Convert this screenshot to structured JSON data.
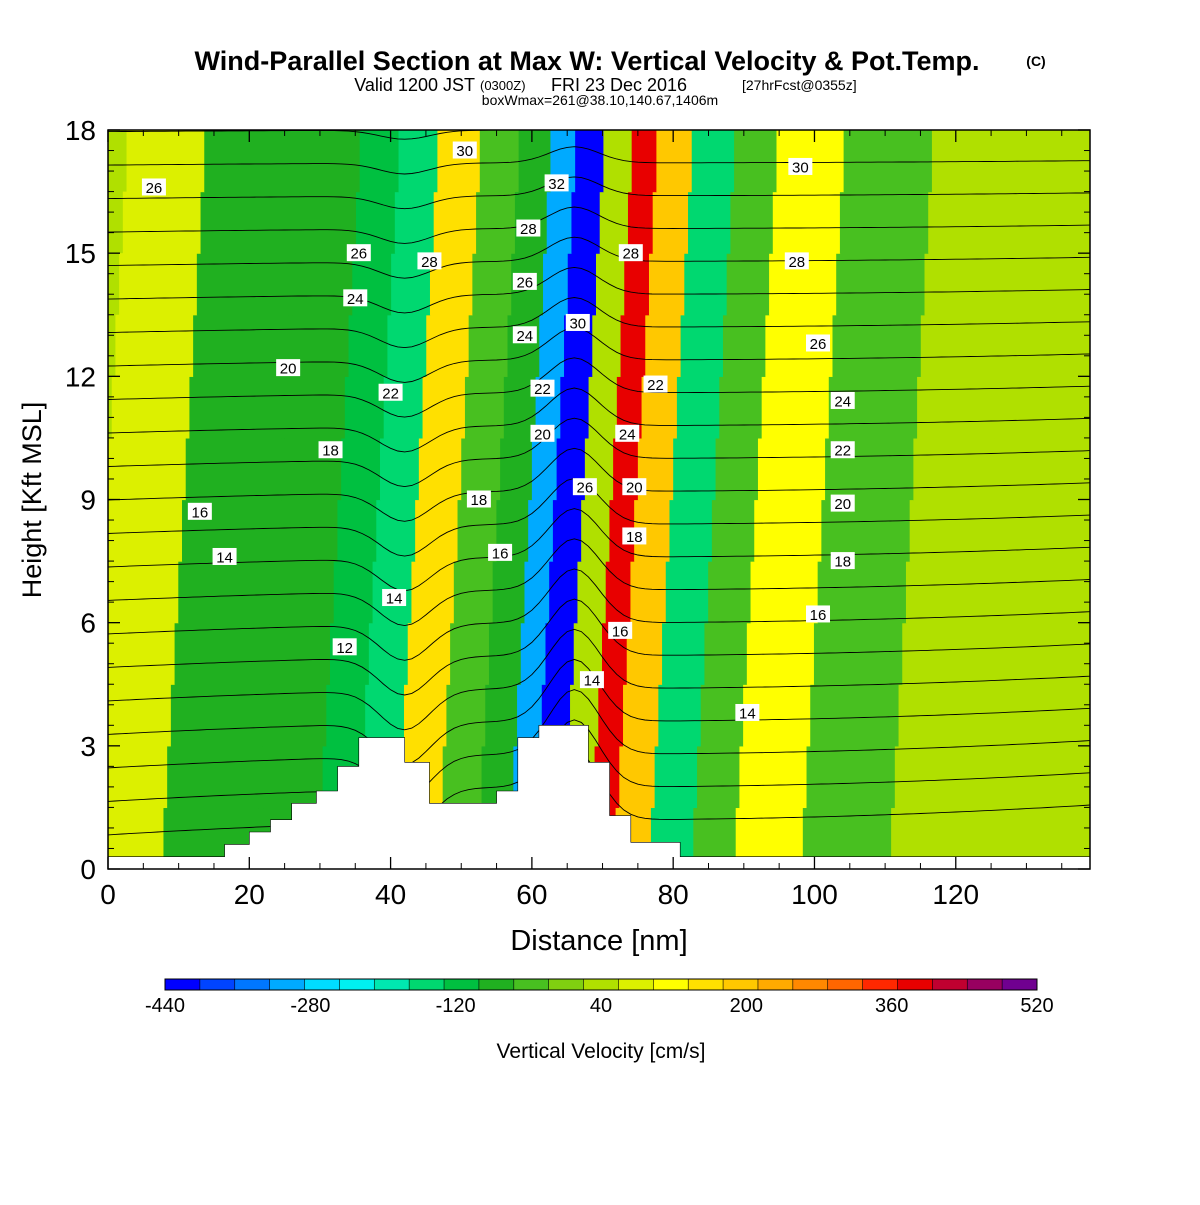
{
  "title": {
    "main": "Wind-Parallel Section at Max W: Vertical Velocity & Pot.Temp.",
    "copyright": "(C)",
    "valid_prefix": "Valid 1200 JST",
    "valid_utc": "(0300Z)",
    "valid_date": "FRI 23 Dec 2016",
    "forecast": "[27hrFcst@0355z]",
    "boxwmax": "boxWmax=261@38.10,140.67,1406m"
  },
  "chart_data": {
    "type": "heatmap",
    "xlabel": "Distance [nm]",
    "ylabel": "Height [Kft MSL]",
    "xlim": [
      0,
      139
    ],
    "ylim": [
      0,
      18
    ],
    "xticks": [
      0,
      20,
      40,
      60,
      80,
      100,
      120
    ],
    "yticks": [
      0,
      3,
      6,
      9,
      12,
      15,
      18
    ],
    "colorbar": {
      "label": "Vertical Velocity [cm/s]",
      "min": -440,
      "max": 520,
      "step": 40,
      "tick_values": [
        -440,
        -280,
        -120,
        40,
        200,
        360,
        520
      ],
      "colors": [
        "#0000ff",
        "#0044ff",
        "#0077ff",
        "#00aaff",
        "#00ddff",
        "#00f0f0",
        "#00e8b0",
        "#00d870",
        "#00c040",
        "#20b020",
        "#48c020",
        "#80d010",
        "#b0e000",
        "#dcf000",
        "#ffff00",
        "#ffe000",
        "#ffc800",
        "#ffaa00",
        "#ff8800",
        "#ff6600",
        "#ff2800",
        "#e80000",
        "#c00030",
        "#980060",
        "#700090"
      ]
    },
    "velocity_bands": [
      {
        "x": 3,
        "w": 100
      },
      {
        "x": 19,
        "w": -60
      },
      {
        "x": 30,
        "w": -60
      },
      {
        "x": 36,
        "w": -120
      },
      {
        "x": 41,
        "w": -160
      },
      {
        "x": 47,
        "w": 160
      },
      {
        "x": 53,
        "w": -40
      },
      {
        "x": 58,
        "w": -80
      },
      {
        "x": 62,
        "w": -300
      },
      {
        "x": 65,
        "w": -440
      },
      {
        "x": 70,
        "w": 60
      },
      {
        "x": 73,
        "w": 400
      },
      {
        "x": 77,
        "w": 200
      },
      {
        "x": 83,
        "w": -140
      },
      {
        "x": 89,
        "w": -40
      },
      {
        "x": 95,
        "w": 120
      },
      {
        "x": 108,
        "w": -40
      },
      {
        "x": 120,
        "w": 40
      },
      {
        "x": 130,
        "w": 60
      }
    ],
    "terrain": [
      [
        0,
        0.3
      ],
      [
        16.5,
        0.3
      ],
      [
        16.5,
        0.6
      ],
      [
        20,
        0.6
      ],
      [
        20,
        0.9
      ],
      [
        23,
        0.9
      ],
      [
        23,
        1.2
      ],
      [
        26,
        1.2
      ],
      [
        26,
        1.6
      ],
      [
        29.5,
        1.6
      ],
      [
        29.5,
        1.9
      ],
      [
        32.5,
        1.9
      ],
      [
        32.5,
        2.5
      ],
      [
        35.5,
        2.5
      ],
      [
        35.5,
        3.2
      ],
      [
        42,
        3.2
      ],
      [
        42,
        2.6
      ],
      [
        45.5,
        2.6
      ],
      [
        45.5,
        1.6
      ],
      [
        55,
        1.6
      ],
      [
        55,
        1.9
      ],
      [
        58,
        1.9
      ],
      [
        58,
        3.2
      ],
      [
        61,
        3.2
      ],
      [
        61,
        3.5
      ],
      [
        68,
        3.5
      ],
      [
        68,
        2.6
      ],
      [
        71,
        2.6
      ],
      [
        71,
        1.3
      ],
      [
        74,
        1.3
      ],
      [
        74,
        0.65
      ],
      [
        81,
        0.65
      ],
      [
        81,
        0.3
      ],
      [
        139,
        0.3
      ]
    ],
    "theta_contour_labels": [
      {
        "text": "26",
        "x": 6.5,
        "y": 16.6
      },
      {
        "text": "30",
        "x": 50.5,
        "y": 17.5
      },
      {
        "text": "32",
        "x": 63.5,
        "y": 16.7
      },
      {
        "text": "30",
        "x": 98,
        "y": 17.1
      },
      {
        "text": "26",
        "x": 35.5,
        "y": 15.0
      },
      {
        "text": "28",
        "x": 45.5,
        "y": 14.8
      },
      {
        "text": "28",
        "x": 59.5,
        "y": 15.6
      },
      {
        "text": "28",
        "x": 74,
        "y": 15.0
      },
      {
        "text": "28",
        "x": 97.5,
        "y": 14.8
      },
      {
        "text": "24",
        "x": 35,
        "y": 13.9
      },
      {
        "text": "26",
        "x": 59,
        "y": 14.3
      },
      {
        "text": "30",
        "x": 66.5,
        "y": 13.3
      },
      {
        "text": "24",
        "x": 59,
        "y": 13.0
      },
      {
        "text": "26",
        "x": 100.5,
        "y": 12.8
      },
      {
        "text": "20",
        "x": 25.5,
        "y": 12.2
      },
      {
        "text": "22",
        "x": 40,
        "y": 11.6
      },
      {
        "text": "22",
        "x": 61.5,
        "y": 11.7
      },
      {
        "text": "22",
        "x": 77.5,
        "y": 11.8
      },
      {
        "text": "24",
        "x": 104,
        "y": 11.4
      },
      {
        "text": "20",
        "x": 61.5,
        "y": 10.6
      },
      {
        "text": "24",
        "x": 73.5,
        "y": 10.6
      },
      {
        "text": "18",
        "x": 31.5,
        "y": 10.2
      },
      {
        "text": "22",
        "x": 104,
        "y": 10.2
      },
      {
        "text": "26",
        "x": 67.5,
        "y": 9.3
      },
      {
        "text": "20",
        "x": 74.5,
        "y": 9.3
      },
      {
        "text": "18",
        "x": 52.5,
        "y": 9.0
      },
      {
        "text": "16",
        "x": 13,
        "y": 8.7
      },
      {
        "text": "20",
        "x": 104,
        "y": 8.9
      },
      {
        "text": "18",
        "x": 74.5,
        "y": 8.1
      },
      {
        "text": "16",
        "x": 55.5,
        "y": 7.7
      },
      {
        "text": "14",
        "x": 16.5,
        "y": 7.6
      },
      {
        "text": "18",
        "x": 104,
        "y": 7.5
      },
      {
        "text": "14",
        "x": 40.5,
        "y": 6.6
      },
      {
        "text": "16",
        "x": 100.5,
        "y": 6.2
      },
      {
        "text": "16",
        "x": 72.5,
        "y": 5.8
      },
      {
        "text": "12",
        "x": 33.5,
        "y": 5.4
      },
      {
        "text": "14",
        "x": 68.5,
        "y": 4.6
      },
      {
        "text": "14",
        "x": 90.5,
        "y": 3.8
      }
    ]
  }
}
